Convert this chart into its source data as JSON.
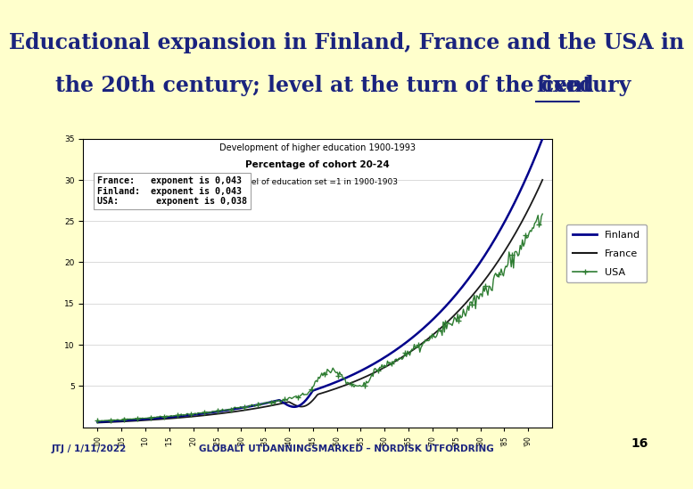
{
  "title_line1": "Educational expansion in Finland, France and the USA in",
  "title_line2": "the 20th century; level at the turn of the century ",
  "title_underlined": "fixed",
  "title_color": "#1a237e",
  "bg_color": "#ffffcc",
  "chart_bg": "#ffffff",
  "footer_left": "JTJ / 1/11/2022",
  "footer_center": "GLOBALT UTDANNINGSMARKED – NORDISK UTFORDRING",
  "footer_color": "#1a237e",
  "page_number": "16",
  "chart_title1": "Development of higher education 1900-1993",
  "chart_title2": "Percentage of cohort 20-24",
  "chart_title3": "Level of education set =1 in 1900-1903",
  "annotation_line1": "France:   exponent is 0,043",
  "annotation_line2": "Finland:  exponent is 0,043",
  "annotation_line3": "USA:       exponent is 0,038",
  "finland_color": "#00008b",
  "france_color": "#1a1a1a",
  "usa_color": "#2e7d32",
  "separator_color": "#2e7d32",
  "ylim": [
    0,
    35
  ],
  "yticks": [
    5,
    10,
    15,
    20,
    25,
    30,
    35
  ],
  "title_fontsize": 17,
  "chart_title_fontsize1": 7,
  "chart_title_fontsize2": 7.5,
  "chart_title_fontsize3": 6.5
}
